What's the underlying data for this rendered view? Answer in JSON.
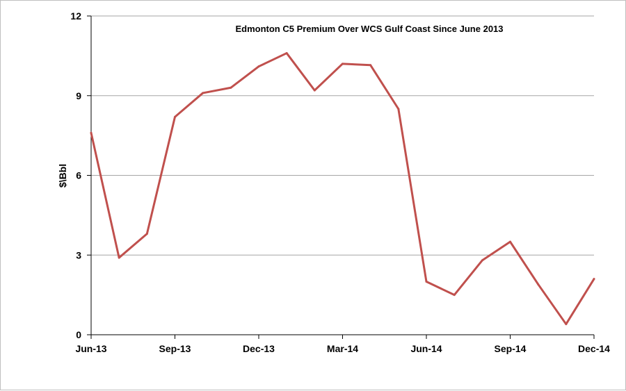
{
  "chart_data": {
    "type": "line",
    "title": "Edmonton C5 Premium Over WCS Gulf Coast Since June 2013",
    "xlabel": "",
    "ylabel": "$\\Bbl",
    "ylim": [
      0,
      12
    ],
    "yticks": [
      0,
      3,
      6,
      9,
      12
    ],
    "grid": true,
    "legend": "none",
    "line_color": "#c0504d",
    "x_tick_labels": [
      "Jun-13",
      "Sep-13",
      "Dec-13",
      "Mar-14",
      "Jun-14",
      "Sep-14",
      "Dec-14"
    ],
    "x": [
      "Jun-13",
      "Jul-13",
      "Aug-13",
      "Sep-13",
      "Oct-13",
      "Nov-13",
      "Dec-13",
      "Jan-14",
      "Feb-14",
      "Mar-14",
      "Apr-14",
      "May-14",
      "Jun-14",
      "Jul-14",
      "Aug-14",
      "Sep-14",
      "Oct-14",
      "Nov-14",
      "Dec-14"
    ],
    "series": [
      {
        "values": [
          7.6,
          2.9,
          3.8,
          8.2,
          9.1,
          9.3,
          10.1,
          10.6,
          9.2,
          10.2,
          10.15,
          8.5,
          2.0,
          1.5,
          2.8,
          3.5,
          1.9,
          0.4,
          2.1
        ]
      }
    ]
  }
}
